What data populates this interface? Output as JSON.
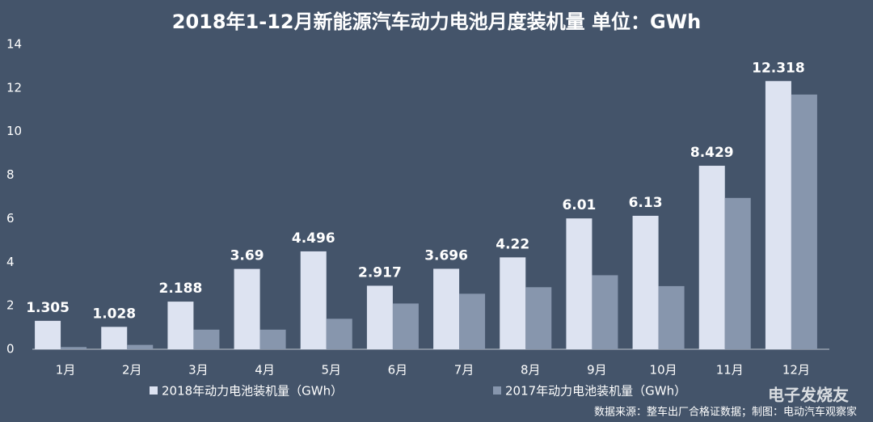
{
  "chart_data": {
    "type": "bar",
    "title": "2018年1-12月新能源汽车动力电池月度装机量 单位：GWh",
    "categories": [
      "1月",
      "2月",
      "3月",
      "4月",
      "5月",
      "6月",
      "7月",
      "8月",
      "9月",
      "10月",
      "11月",
      "12月"
    ],
    "series": [
      {
        "name": "2018年动力电池装机量（GWh）",
        "color": "#dde3f1",
        "values": [
          1.305,
          1.028,
          2.188,
          3.69,
          4.496,
          2.917,
          3.696,
          4.22,
          6.01,
          6.13,
          8.429,
          12.318
        ],
        "show_labels": true
      },
      {
        "name": "2017年动力电池装机量（GWh）",
        "color": "#8796ad",
        "values": [
          0.1,
          0.2,
          0.9,
          0.9,
          1.4,
          2.1,
          2.55,
          2.85,
          3.4,
          2.9,
          6.95,
          11.7
        ],
        "show_labels": false
      }
    ],
    "ylim": [
      0,
      14
    ],
    "yticks": [
      0,
      2,
      4,
      6,
      8,
      10,
      12,
      14
    ],
    "grid": false,
    "source": "数据来源：整车出厂合格证数据；制图：电动汽车观察家",
    "watermark": "电子发烧友"
  }
}
